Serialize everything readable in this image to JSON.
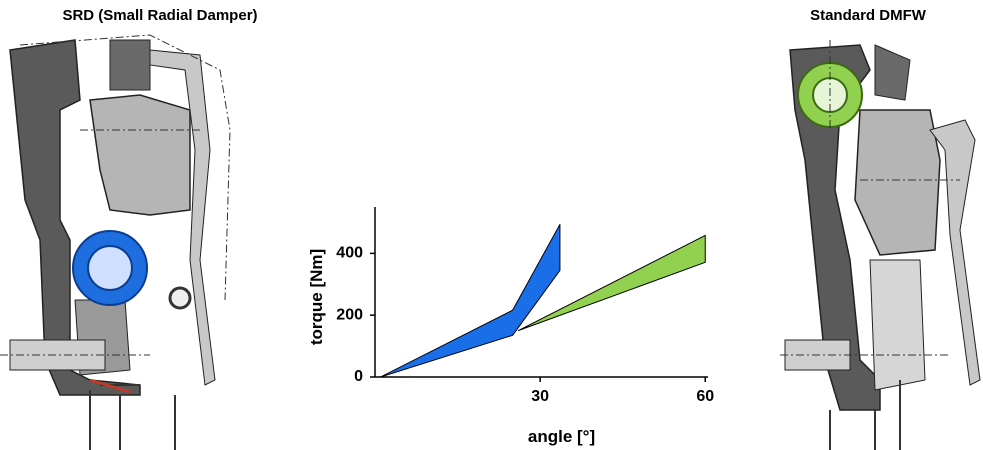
{
  "panels": [
    "SRD (Small Radial Damper)",
    "Standard DMFW"
  ],
  "chart_data": {
    "type": "range-area",
    "xlabel": "angle [°]",
    "ylabel": "torque [Nm]",
    "xlim": [
      0,
      60.5
    ],
    "ylim": [
      0,
      550
    ],
    "xticks": [
      30,
      60
    ],
    "yticks": [
      0,
      200,
      400
    ],
    "series": [
      {
        "color": "#1a6fe8",
        "x": [
          1,
          25,
          33.6
        ],
        "low": [
          0,
          135,
          345
        ],
        "high": [
          0,
          216,
          494
        ]
      },
      {
        "color": "#92d050",
        "x": [
          26,
          60
        ],
        "low": [
          150,
          371
        ],
        "high": [
          150,
          458
        ]
      }
    ]
  }
}
